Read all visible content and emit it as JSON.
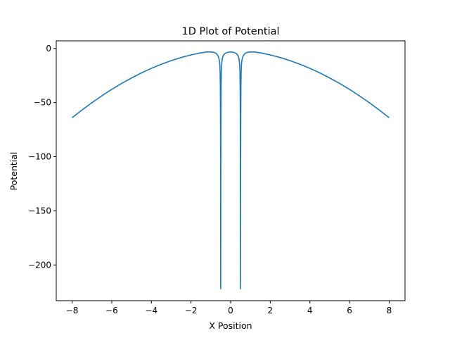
{
  "chart_data": {
    "type": "line",
    "title": "1D Plot of Potential",
    "xlabel": "X Position",
    "ylabel": "Potential",
    "xlim": [
      -8.8,
      8.8
    ],
    "ylim": [
      -233,
      7
    ],
    "xticks": [
      -8,
      -6,
      -4,
      -2,
      0,
      2,
      4,
      6,
      8
    ],
    "xtick_labels": [
      "−8",
      "−6",
      "−4",
      "−2",
      "0",
      "2",
      "4",
      "6",
      "8"
    ],
    "yticks": [
      0,
      -50,
      -100,
      -150,
      -200
    ],
    "ytick_labels": [
      "0",
      "−50",
      "−100",
      "−150",
      "−200"
    ],
    "grid": false,
    "line_color": "#1f77b4",
    "series": [
      {
        "x": [
          -8.0,
          -7.5,
          -7.0,
          -6.5,
          -6.0,
          -5.5,
          -5.0,
          -4.5,
          -4.0,
          -3.5,
          -3.0,
          -2.5,
          -2.0,
          -1.5,
          -1.2,
          -1.0,
          -0.85,
          -0.75,
          -0.68,
          -0.62,
          -0.58,
          -0.555,
          -0.54,
          -0.53,
          -0.52,
          -0.51,
          -0.505,
          -0.5,
          -0.495,
          -0.49,
          -0.48,
          -0.47,
          -0.46,
          -0.445,
          -0.42,
          -0.38,
          -0.32,
          -0.25,
          -0.15,
          0.0,
          0.15,
          0.25,
          0.32,
          0.38,
          0.42,
          0.445,
          0.46,
          0.47,
          0.48,
          0.49,
          0.495,
          0.5,
          0.505,
          0.51,
          0.52,
          0.53,
          0.54,
          0.555,
          0.58,
          0.62,
          0.68,
          0.75,
          0.85,
          1.0,
          1.2,
          1.5,
          2.0,
          2.5,
          3.0,
          3.5,
          4.0,
          4.5,
          5.0,
          5.5,
          6.0,
          6.5,
          7.0,
          7.5,
          8.0
        ],
        "y": [
          -64,
          -56.9,
          -50.1,
          -43.8,
          -37.8,
          -32.3,
          -27.3,
          -22.6,
          -18.4,
          -14.6,
          -11.3,
          -8.4,
          -6.0,
          -4.1,
          -3.3,
          -3.2,
          -3.6,
          -4.4,
          -5.6,
          -7.5,
          -10.0,
          -13.0,
          -17.0,
          -22.0,
          -35.0,
          -70.0,
          -120.0,
          -222.0,
          -120.0,
          -70.0,
          -35.0,
          -22.0,
          -17.0,
          -13.0,
          -9.5,
          -6.8,
          -5.2,
          -4.3,
          -3.6,
          -3.3,
          -3.6,
          -4.3,
          -5.2,
          -6.8,
          -9.5,
          -13.0,
          -17.0,
          -22.0,
          -35.0,
          -70.0,
          -120.0,
          -222.0,
          -120.0,
          -70.0,
          -35.0,
          -22.0,
          -17.0,
          -13.0,
          -10.0,
          -7.5,
          -5.6,
          -4.4,
          -3.6,
          -3.2,
          -3.3,
          -4.1,
          -6.0,
          -8.4,
          -11.3,
          -14.6,
          -18.4,
          -22.6,
          -27.3,
          -32.3,
          -37.8,
          -43.8,
          -50.1,
          -56.9,
          -64
        ]
      }
    ]
  }
}
